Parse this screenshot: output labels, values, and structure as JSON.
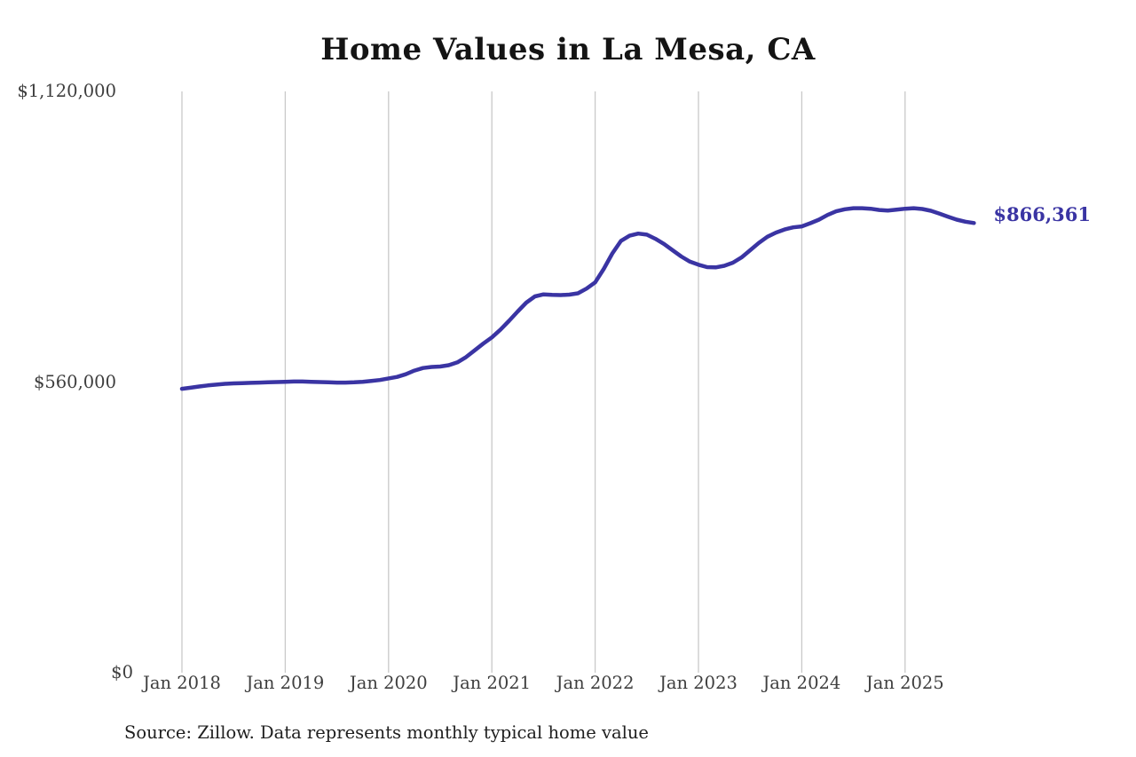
{
  "chart_data": {
    "type": "line",
    "title": "Home Values in La Mesa, CA",
    "source": "Source: Zillow. Data represents monthly typical home value",
    "end_label": "$866,361",
    "latest_value": 866361,
    "ylim": [
      0,
      1120000
    ],
    "grid": "vertical-only",
    "colors": {
      "line": "#3a34a3",
      "grid": "#c9c9c9",
      "axis_text": "#3e3e3e",
      "title_text": "#141414",
      "end_label_text": "#3a34a3",
      "background": "#ffffff"
    },
    "y_ticks": [
      {
        "label": "$0",
        "value": 0
      },
      {
        "label": "$560,000",
        "value": 560000
      },
      {
        "label": "$1,120,000",
        "value": 1120000
      }
    ],
    "x_ticks": [
      {
        "label": "Jan 2018",
        "month_index": 0
      },
      {
        "label": "Jan 2019",
        "month_index": 12
      },
      {
        "label": "Jan 2020",
        "month_index": 24
      },
      {
        "label": "Jan 2021",
        "month_index": 36
      },
      {
        "label": "Jan 2022",
        "month_index": 48
      },
      {
        "label": "Jan 2023",
        "month_index": 60
      },
      {
        "label": "Jan 2024",
        "month_index": 72
      },
      {
        "label": "Jan 2025",
        "month_index": 84
      }
    ],
    "series": [
      {
        "name": "Monthly typical home value",
        "start_month": "Jan 2018",
        "end_month": "Sep 2025",
        "values": [
          547000,
          549000,
          551500,
          553500,
          555000,
          556500,
          557500,
          558000,
          558500,
          559000,
          559500,
          560000,
          560500,
          561000,
          561000,
          560500,
          560000,
          559500,
          559000,
          559000,
          559500,
          560500,
          562000,
          564000,
          567000,
          570000,
          575000,
          582000,
          587000,
          589000,
          590000,
          592500,
          598000,
          608000,
          621000,
          634000,
          646000,
          661000,
          678000,
          696000,
          713000,
          725000,
          729000,
          728000,
          727500,
          728500,
          731000,
          740000,
          752000,
          778000,
          808000,
          832000,
          842000,
          846000,
          844000,
          836000,
          826000,
          814000,
          802000,
          792000,
          786000,
          781500,
          781000,
          784000,
          790000,
          800000,
          814000,
          828000,
          840000,
          848000,
          854000,
          858000,
          860000,
          866000,
          873000,
          882000,
          889000,
          893000,
          895000,
          895000,
          894000,
          891500,
          890500,
          892000,
          894000,
          895000,
          893500,
          890000,
          884500,
          878500,
          873000,
          869000,
          866361
        ]
      }
    ]
  }
}
